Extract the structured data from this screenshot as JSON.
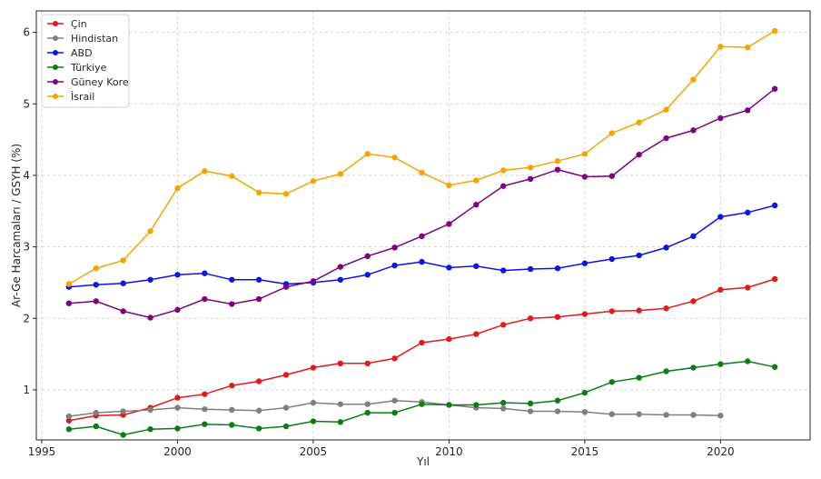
{
  "chart_data": {
    "type": "line",
    "title": "",
    "xlabel": "Yıl",
    "ylabel": "Ar-Ge Harcamaları / GSYH (%)",
    "xlim": [
      1994.8,
      2023.3
    ],
    "ylim": [
      0.3,
      6.3
    ],
    "xticks": [
      1995,
      2000,
      2005,
      2010,
      2015,
      2020
    ],
    "yticks": [
      1,
      2,
      3,
      4,
      5,
      6
    ],
    "grid": true,
    "legend_position": "top-left",
    "series": [
      {
        "name": "Çin",
        "color": "#e31a1c",
        "x": [
          1996,
          1997,
          1998,
          1999,
          2000,
          2001,
          2002,
          2003,
          2004,
          2005,
          2006,
          2007,
          2008,
          2009,
          2010,
          2011,
          2012,
          2013,
          2014,
          2015,
          2016,
          2017,
          2018,
          2019,
          2020,
          2021,
          2022
        ],
        "y": [
          0.57,
          0.64,
          0.65,
          0.75,
          0.89,
          0.94,
          1.06,
          1.12,
          1.21,
          1.31,
          1.37,
          1.37,
          1.44,
          1.66,
          1.71,
          1.78,
          1.91,
          2.0,
          2.02,
          2.06,
          2.1,
          2.11,
          2.14,
          2.24,
          2.4,
          2.43,
          2.55
        ]
      },
      {
        "name": "Hindistan",
        "color": "#808080",
        "x": [
          1996,
          1997,
          1998,
          1999,
          2000,
          2001,
          2002,
          2003,
          2004,
          2005,
          2006,
          2007,
          2008,
          2009,
          2010,
          2011,
          2012,
          2013,
          2014,
          2015,
          2016,
          2017,
          2018,
          2019,
          2020
        ],
        "y": [
          0.63,
          0.68,
          0.7,
          0.72,
          0.75,
          0.73,
          0.72,
          0.71,
          0.75,
          0.82,
          0.8,
          0.8,
          0.85,
          0.83,
          0.79,
          0.75,
          0.74,
          0.7,
          0.7,
          0.69,
          0.66,
          0.66,
          0.65,
          0.65,
          0.64
        ]
      },
      {
        "name": "ABD",
        "color": "#0a14e6",
        "x": [
          1996,
          1997,
          1998,
          1999,
          2000,
          2001,
          2002,
          2003,
          2004,
          2005,
          2006,
          2007,
          2008,
          2009,
          2010,
          2011,
          2012,
          2013,
          2014,
          2015,
          2016,
          2017,
          2018,
          2019,
          2020,
          2021,
          2022
        ],
        "y": [
          2.44,
          2.47,
          2.49,
          2.54,
          2.61,
          2.63,
          2.54,
          2.54,
          2.48,
          2.5,
          2.54,
          2.61,
          2.74,
          2.79,
          2.71,
          2.73,
          2.67,
          2.69,
          2.7,
          2.77,
          2.83,
          2.88,
          2.99,
          3.15,
          3.42,
          3.48,
          3.58
        ]
      },
      {
        "name": "Türkiye",
        "color": "#0a7d14",
        "x": [
          1996,
          1997,
          1998,
          1999,
          2000,
          2001,
          2002,
          2003,
          2004,
          2005,
          2006,
          2007,
          2008,
          2009,
          2010,
          2011,
          2012,
          2013,
          2014,
          2015,
          2016,
          2017,
          2018,
          2019,
          2020,
          2021,
          2022
        ],
        "y": [
          0.45,
          0.49,
          0.37,
          0.45,
          0.46,
          0.52,
          0.51,
          0.46,
          0.49,
          0.56,
          0.55,
          0.68,
          0.68,
          0.8,
          0.79,
          0.79,
          0.82,
          0.81,
          0.85,
          0.96,
          1.11,
          1.17,
          1.26,
          1.31,
          1.36,
          1.4,
          1.32
        ]
      },
      {
        "name": "Güney Kore",
        "color": "#800080",
        "x": [
          1996,
          1997,
          1998,
          1999,
          2000,
          2001,
          2002,
          2003,
          2004,
          2005,
          2006,
          2007,
          2008,
          2009,
          2010,
          2011,
          2012,
          2013,
          2014,
          2015,
          2016,
          2017,
          2018,
          2019,
          2020,
          2021,
          2022
        ],
        "y": [
          2.21,
          2.24,
          2.1,
          2.01,
          2.12,
          2.27,
          2.2,
          2.27,
          2.44,
          2.52,
          2.72,
          2.87,
          2.99,
          3.15,
          3.32,
          3.59,
          3.85,
          3.95,
          4.08,
          3.98,
          3.99,
          4.29,
          4.52,
          4.63,
          4.8,
          4.91,
          5.21
        ]
      },
      {
        "name": "İsrail",
        "color": "#f5a500",
        "x": [
          1996,
          1997,
          1998,
          1999,
          2000,
          2001,
          2002,
          2003,
          2004,
          2005,
          2006,
          2007,
          2008,
          2009,
          2010,
          2011,
          2012,
          2013,
          2014,
          2015,
          2016,
          2017,
          2018,
          2019,
          2020,
          2021,
          2022
        ],
        "y": [
          2.48,
          2.7,
          2.81,
          3.22,
          3.82,
          4.06,
          3.99,
          3.76,
          3.74,
          3.92,
          4.02,
          4.3,
          4.25,
          4.04,
          3.86,
          3.93,
          4.07,
          4.11,
          4.2,
          4.3,
          4.59,
          4.74,
          4.92,
          5.34,
          5.8,
          5.79,
          6.02
        ]
      }
    ]
  }
}
